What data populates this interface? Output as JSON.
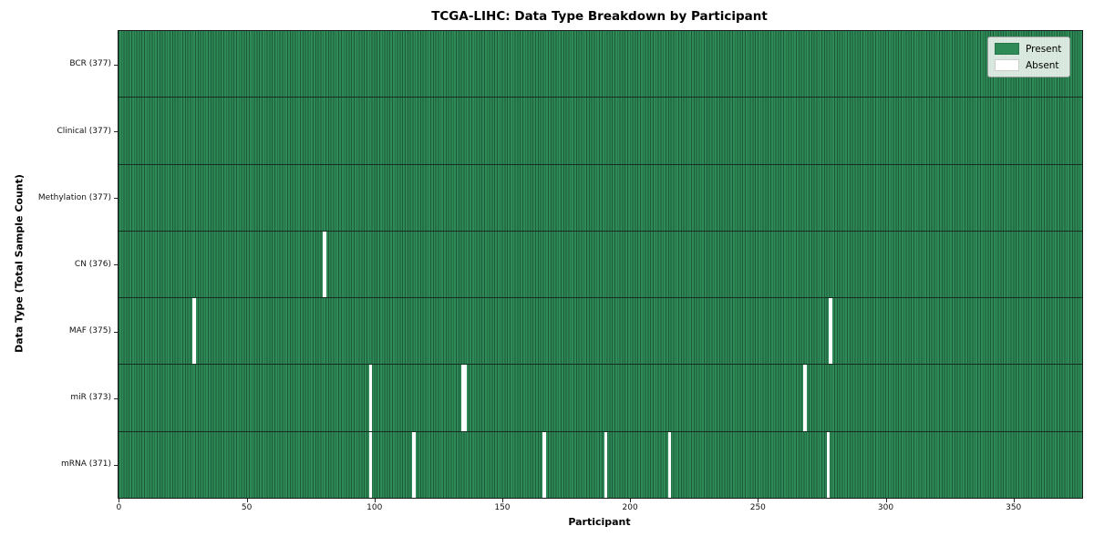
{
  "title": "TCGA-LIHC: Data Type Breakdown by Participant",
  "colors": {
    "present": "#2e8b57",
    "present_edge": "#1c5a39",
    "absent": "#ffffff",
    "row_border": "#142f20",
    "axis": "#1a1a1a",
    "legend_bg": "rgba(255,255,255,0.82)"
  },
  "chart_data": {
    "type": "heatmap",
    "title": "TCGA-LIHC: Data Type Breakdown by Participant",
    "xlabel": "Participant",
    "ylabel": "Data Type (Total Sample Count)",
    "xlim": [
      0,
      377
    ],
    "n_participants": 377,
    "x_ticks": [
      0,
      50,
      100,
      150,
      200,
      250,
      300,
      350
    ],
    "grid": false,
    "legend_position": "upper right",
    "legend_entries": [
      {
        "label": "Present",
        "value": 1
      },
      {
        "label": "Absent",
        "value": 0
      }
    ],
    "rows": [
      {
        "label": "BCR (377)",
        "data_type": "BCR",
        "present_count": 377,
        "absent_participants": []
      },
      {
        "label": "Clinical (377)",
        "data_type": "Clinical",
        "present_count": 377,
        "absent_participants": []
      },
      {
        "label": "Methylation (377)",
        "data_type": "Methylation",
        "present_count": 377,
        "absent_participants": []
      },
      {
        "label": "CN (376)",
        "data_type": "CN",
        "present_count": 376,
        "absent_participants": [
          80
        ]
      },
      {
        "label": "MAF (375)",
        "data_type": "MAF",
        "present_count": 375,
        "absent_participants": [
          29,
          278
        ]
      },
      {
        "label": "miR (373)",
        "data_type": "miR",
        "present_count": 373,
        "absent_participants": [
          98,
          134,
          135,
          268
        ]
      },
      {
        "label": "mRNA (371)",
        "data_type": "mRNA",
        "present_count": 371,
        "absent_participants": [
          98,
          115,
          166,
          190,
          215,
          277
        ]
      }
    ]
  }
}
